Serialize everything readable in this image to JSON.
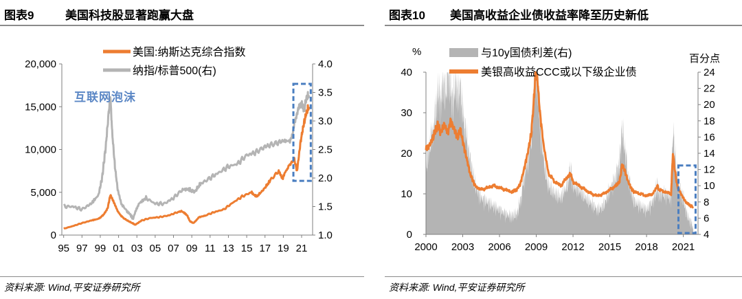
{
  "left_panel": {
    "figure_number": "图表9",
    "figure_title": "美国科技股显著跑赢大盘",
    "source": "资料来源: Wind,平安证券研究所"
  },
  "right_panel": {
    "figure_number": "图表10",
    "figure_title": "美国高收益企业债收益率降至历史新低",
    "source": "资料来源: Wind,平安证券研究所"
  },
  "colors": {
    "orange": "#ED7D31",
    "gray": "#B4B4B4",
    "gray_dark": "#A6A6A6",
    "dash_blue": "#4A7EC0",
    "annotation": "#5B87C5"
  },
  "chart_data": [
    {
      "type": "line",
      "legend": [
        "美国:纳斯达克综合指数",
        "纳指/标普500(右)"
      ],
      "annotation": "互联网泡沫",
      "x_ticks": [
        "95",
        "97",
        "99",
        "01",
        "03",
        "05",
        "07",
        "09",
        "11",
        "13",
        "15",
        "17",
        "19",
        "21"
      ],
      "y_left": {
        "ticks": [
          "0",
          "5,000",
          "10,000",
          "15,000",
          "20,000"
        ],
        "range": [
          0,
          20000
        ]
      },
      "y_right": {
        "ticks": [
          "1.0",
          "1.5",
          "2.0",
          "2.5",
          "3.0",
          "3.5",
          "4.0"
        ],
        "range": [
          1.0,
          4.0
        ]
      },
      "series": [
        {
          "name": "美国:纳斯达克综合指数",
          "axis": "left",
          "color": "#ED7D31",
          "x": [
            1995.0,
            1996.0,
            1997.0,
            1998.0,
            1998.8,
            1999.3,
            1999.8,
            2000.1,
            2000.5,
            2000.9,
            2001.3,
            2001.8,
            2002.5,
            2002.8,
            2003.5,
            2004.5,
            2005.5,
            2006.5,
            2007.5,
            2007.9,
            2008.5,
            2008.8,
            2009.2,
            2009.8,
            2010.5,
            2011.5,
            2012.5,
            2013.5,
            2014.5,
            2015.5,
            2016.1,
            2016.8,
            2017.5,
            2018.5,
            2018.9,
            2019.5,
            2020.2,
            2020.5,
            2020.9,
            2021.2,
            2021.5,
            2021.8
          ],
          "y": [
            750,
            1050,
            1400,
            1700,
            1900,
            2300,
            3100,
            4700,
            3800,
            2800,
            2200,
            1800,
            1400,
            1200,
            1700,
            2000,
            2100,
            2300,
            2700,
            2800,
            2300,
            1600,
            1400,
            2100,
            2300,
            2700,
            3000,
            3800,
            4500,
            5000,
            4500,
            5300,
            6300,
            7500,
            6600,
            7900,
            8800,
            7500,
            11000,
            12800,
            14200,
            15000
          ]
        },
        {
          "name": "纳指/标普500(右)",
          "axis": "right",
          "color": "#B4B4B4",
          "x": [
            1995.0,
            1996.0,
            1997.0,
            1998.0,
            1998.8,
            1999.2,
            1999.6,
            1999.9,
            2000.1,
            2000.3,
            2000.6,
            2000.9,
            2001.3,
            2002.0,
            2002.6,
            2003.2,
            2004.0,
            2005.0,
            2006.0,
            2007.0,
            2008.0,
            2008.8,
            2009.3,
            2010.0,
            2011.0,
            2012.0,
            2013.0,
            2014.0,
            2015.0,
            2016.0,
            2017.0,
            2018.0,
            2019.0,
            2019.8,
            2020.3,
            2020.7,
            2021.0,
            2021.3,
            2021.5,
            2021.8
          ],
          "y": [
            1.5,
            1.5,
            1.45,
            1.55,
            1.7,
            2.0,
            2.55,
            3.1,
            3.45,
            2.8,
            2.2,
            1.8,
            1.55,
            1.4,
            1.3,
            1.55,
            1.65,
            1.55,
            1.55,
            1.65,
            1.8,
            1.8,
            1.75,
            1.9,
            2.0,
            2.1,
            2.2,
            2.25,
            2.4,
            2.45,
            2.55,
            2.6,
            2.65,
            2.65,
            3.0,
            3.25,
            3.3,
            3.2,
            3.4,
            3.45
          ]
        }
      ]
    },
    {
      "type": "line",
      "legend": [
        "与10y国债利差(右)",
        "美银高收益CCC或以下级企业债"
      ],
      "left_unit": "%",
      "right_unit": "百分点",
      "x_ticks": [
        "2000",
        "2003",
        "2006",
        "2009",
        "2012",
        "2015",
        "2018",
        "2021"
      ],
      "y_left": {
        "ticks": [
          "0",
          "10",
          "20",
          "30",
          "40"
        ],
        "range": [
          0,
          40
        ]
      },
      "y_right": {
        "ticks": [
          "4",
          "6",
          "8",
          "10",
          "12",
          "14",
          "16",
          "18",
          "20",
          "22",
          "24"
        ],
        "range": [
          4,
          24
        ]
      },
      "series": [
        {
          "name": "与10y国债利差(右)",
          "axis": "right",
          "type": "area",
          "color": "#B4B4B4",
          "x": [
            2000.0,
            2000.3,
            2000.6,
            2000.8,
            2001.0,
            2001.2,
            2001.4,
            2001.6,
            2001.8,
            2002.0,
            2002.2,
            2002.4,
            2002.6,
            2002.8,
            2003.0,
            2003.3,
            2003.6,
            2004.0,
            2004.5,
            2005.0,
            2005.5,
            2006.0,
            2006.5,
            2007.0,
            2007.4,
            2007.7,
            2008.0,
            2008.3,
            2008.6,
            2008.8,
            2008.95,
            2009.1,
            2009.3,
            2009.6,
            2010.0,
            2010.5,
            2011.0,
            2011.5,
            2011.8,
            2012.0,
            2012.5,
            2013.0,
            2013.5,
            2014.0,
            2014.5,
            2015.0,
            2015.5,
            2015.8,
            2016.0,
            2016.2,
            2016.5,
            2016.8,
            2017.0,
            2017.5,
            2018.0,
            2018.5,
            2018.9,
            2019.0,
            2019.5,
            2020.0,
            2020.15,
            2020.3,
            2020.5,
            2020.8,
            2021.0,
            2021.2,
            2021.4,
            2021.6,
            2021.8
          ],
          "y": [
            12,
            15,
            17,
            19,
            22,
            20,
            23,
            21,
            24,
            22,
            20,
            23,
            21,
            22,
            19,
            16,
            13,
            10,
            8.5,
            8,
            7.5,
            7,
            6.5,
            6.2,
            6.5,
            8,
            11,
            13,
            16,
            21,
            24,
            23,
            18,
            13,
            10,
            9,
            8.5,
            10,
            12,
            10,
            9.5,
            8.5,
            7.8,
            7,
            7.5,
            9.5,
            11,
            13,
            17,
            15,
            11,
            9,
            8,
            7.5,
            7,
            8,
            10,
            9,
            9,
            8.5,
            17,
            14,
            11,
            9,
            8.5,
            7,
            6,
            5.5,
            5
          ]
        },
        {
          "name": "美银高收益CCC或以下级企业债",
          "axis": "left",
          "color": "#ED7D31",
          "x": [
            2000.0,
            2000.3,
            2000.6,
            2000.8,
            2001.0,
            2001.2,
            2001.5,
            2001.8,
            2002.0,
            2002.3,
            2002.6,
            2002.8,
            2003.0,
            2003.3,
            2003.6,
            2004.0,
            2004.5,
            2005.0,
            2005.5,
            2006.0,
            2006.5,
            2007.0,
            2007.4,
            2007.7,
            2008.0,
            2008.3,
            2008.6,
            2008.8,
            2008.95,
            2009.1,
            2009.3,
            2009.6,
            2010.0,
            2010.5,
            2011.0,
            2011.5,
            2011.8,
            2012.0,
            2012.5,
            2013.0,
            2013.5,
            2014.0,
            2014.5,
            2015.0,
            2015.5,
            2015.8,
            2016.0,
            2016.2,
            2016.5,
            2016.8,
            2017.0,
            2017.5,
            2018.0,
            2018.5,
            2018.9,
            2019.0,
            2019.5,
            2020.0,
            2020.15,
            2020.3,
            2020.5,
            2020.8,
            2021.0,
            2021.2,
            2021.4,
            2021.6,
            2021.8
          ],
          "y": [
            21,
            22,
            24,
            26,
            27,
            25,
            27,
            25,
            28,
            26,
            24,
            26,
            23,
            19,
            15,
            12,
            11,
            11.5,
            12,
            11.5,
            11,
            10.5,
            11,
            12.5,
            16,
            20,
            25,
            33,
            40,
            38,
            30,
            22,
            15,
            13,
            12,
            14,
            15,
            13,
            12,
            11,
            10,
            9.5,
            10,
            11,
            12,
            13,
            17,
            16,
            13,
            11,
            10.5,
            10,
            9.5,
            10,
            12,
            11,
            10.5,
            10,
            20,
            16,
            12,
            10,
            9,
            8,
            7.5,
            7,
            6.8
          ]
        }
      ]
    }
  ]
}
